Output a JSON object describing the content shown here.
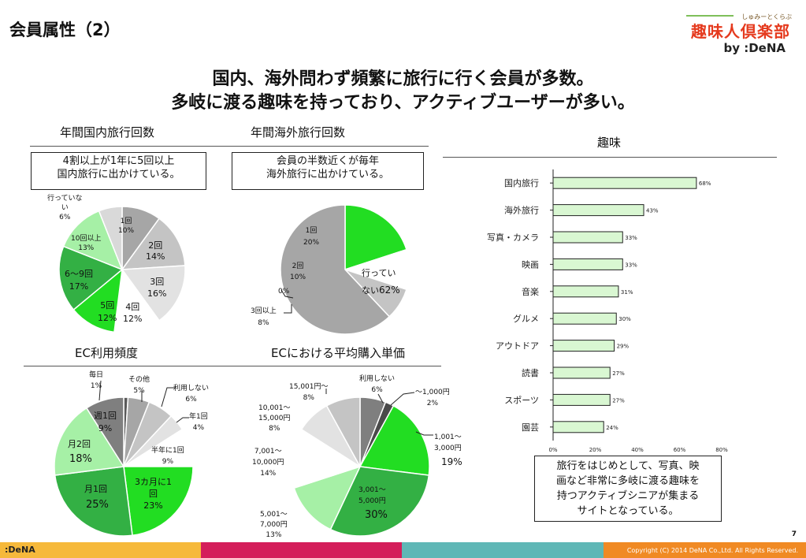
{
  "slide": {
    "title": "会員属性（2）",
    "page": "7"
  },
  "logo": {
    "kana": "しゅみーとくらぶ",
    "name": "趣味人倶楽部",
    "by": "by :DeNA"
  },
  "headline": {
    "line1": "国内、海外問わず頻繁に旅行に行く会員が多数。",
    "line2": "多岐に渡る趣味を持っており、アクティブユーザーが多い。"
  },
  "sections": {
    "domestic_title": "年間国内旅行回数",
    "overseas_title": "年間海外旅行回数",
    "hobby_title": "趣味",
    "ec_freq_title": "EC利用頻度",
    "ec_price_title": "ECにおける平均購入単価"
  },
  "callouts": {
    "domestic": "4割以上が1年に5回以上\n国内旅行に出かけている。",
    "overseas": "会員の半数近くが毎年\n海外旅行に出かけている。",
    "hobby": "旅行をはじめとして、写真、映\n画など非常に多岐に渡る趣味を\n持つアクティブシニアが集まる\nサイトとなっている。"
  },
  "labels": {
    "dom": [
      "1回\n10%",
      "2回\n14%",
      "3回\n16%",
      "4回\n12%",
      "5回\n12%",
      "6〜9回\n17%",
      "10回以上\n13%",
      "行っていな\nい\n6%"
    ],
    "ovs": [
      "1回\n20%",
      "2回\n10%",
      "0%",
      "3回以上\n8%",
      "行ってい",
      "ない",
      "62%"
    ],
    "ecf": [
      "毎日\n1%",
      "その他\n5%",
      "利用しない\n6%",
      "年1回\n4%",
      "半年に1回\n9%",
      "3カ月に1\n回\n23%",
      "月1回",
      "25%",
      "月2回",
      "18%",
      "週1回\n9%"
    ],
    "ecp": [
      "利用しない\n6%",
      "〜1,000円\n2%",
      "1,001〜\n3,000円",
      "19%",
      "3,001〜\n5,000円",
      "30%",
      "5,001〜\n7,000円\n13%",
      "7,001〜\n10,000円\n14%",
      "10,001〜\n15,000円\n8%",
      "15,001円〜\n8%"
    ]
  },
  "chart_data": [
    {
      "type": "pie",
      "title": "年間国内旅行回数",
      "categories": [
        "1回",
        "2回",
        "3回",
        "4回",
        "5回",
        "6〜9回",
        "10回以上",
        "行っていない"
      ],
      "values": [
        10,
        14,
        16,
        12,
        12,
        17,
        13,
        6
      ],
      "colors": [
        "#a6a6a6",
        "#c4c4c4",
        "#e2e2e2",
        "#ffffff",
        "#22dd22",
        "#33b044",
        "#a6f0a6",
        "#d9d9d9"
      ]
    },
    {
      "type": "pie",
      "title": "年間海外旅行回数",
      "categories": [
        "行っていない",
        "1回",
        "2回",
        "3回以上",
        "0%"
      ],
      "values": [
        62,
        20,
        10,
        8,
        0
      ],
      "order": [
        "1回",
        "2回",
        "0%",
        "3回以上",
        "行っていない"
      ],
      "colors": [
        "#a6a6a6",
        "#22dd22",
        "#ffffff",
        "#c4c4c4",
        "#ffffff"
      ]
    },
    {
      "type": "bar",
      "title": "趣味",
      "orientation": "horizontal",
      "categories": [
        "国内旅行",
        "海外旅行",
        "写真・カメラ",
        "映画",
        "音楽",
        "グルメ",
        "アウトドア",
        "読書",
        "スポーツ",
        "園芸"
      ],
      "values": [
        68,
        43,
        33,
        33,
        31,
        30,
        29,
        27,
        27,
        24
      ],
      "xlim": [
        0,
        80
      ],
      "xticks": [
        "0%",
        "20%",
        "40%",
        "60%",
        "80%"
      ],
      "bar_color": "#d9f7d2",
      "bar_edge": "#222222"
    },
    {
      "type": "pie",
      "title": "EC利用頻度",
      "categories": [
        "毎日",
        "その他",
        "利用しない",
        "年1回",
        "半年に1回",
        "3カ月に1回",
        "月1回",
        "月2回",
        "週1回"
      ],
      "values": [
        1,
        5,
        6,
        4,
        9,
        23,
        25,
        18,
        9
      ],
      "colors": [
        "#5a5a5a",
        "#a6a6a6",
        "#c4c4c4",
        "#e2e2e2",
        "#ffffff",
        "#22dd22",
        "#33b044",
        "#a6f0a6",
        "#7f7f7f"
      ]
    },
    {
      "type": "pie",
      "title": "ECにおける平均購入単価",
      "categories": [
        "利用しない",
        "〜1,000円",
        "1,001〜3,000円",
        "3,001〜5,000円",
        "5,001〜7,000円",
        "7,001〜10,000円",
        "10,001〜15,000円",
        "15,001円〜"
      ],
      "values": [
        6,
        2,
        19,
        30,
        13,
        14,
        8,
        8
      ],
      "colors": [
        "#7f7f7f",
        "#4a4a4a",
        "#22dd22",
        "#33b044",
        "#a6f0a6",
        "#ffffff",
        "#e2e2e2",
        "#c4c4c4"
      ]
    }
  ],
  "footer": {
    "brand": ":DeNA",
    "copyright": "Copyright (C) 2014 DeNA Co.,Ltd. All Rights Reserved.",
    "colors": [
      "#f6b93b",
      "#d41e5a",
      "#5fb7b6",
      "#f08a24"
    ]
  }
}
